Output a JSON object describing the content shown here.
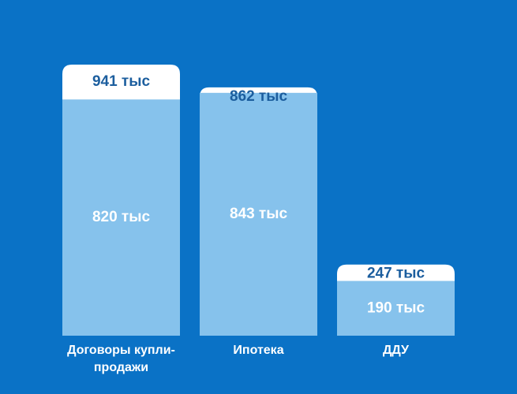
{
  "chart_data": {
    "type": "overlap-bar",
    "categories": [
      "Договоры купли-продажи",
      "Ипотека",
      "ДДУ"
    ],
    "series": [
      {
        "color": "#ffffff",
        "values": [
          941,
          862,
          247
        ],
        "value_labels": [
          "941 тыс",
          "862 тыс",
          "247 тыс"
        ]
      },
      {
        "color": "#86c2ec",
        "values": [
          820,
          843,
          190
        ],
        "value_labels": [
          "820 тыс",
          "843 тыс",
          "190 тыс"
        ]
      }
    ]
  }
}
